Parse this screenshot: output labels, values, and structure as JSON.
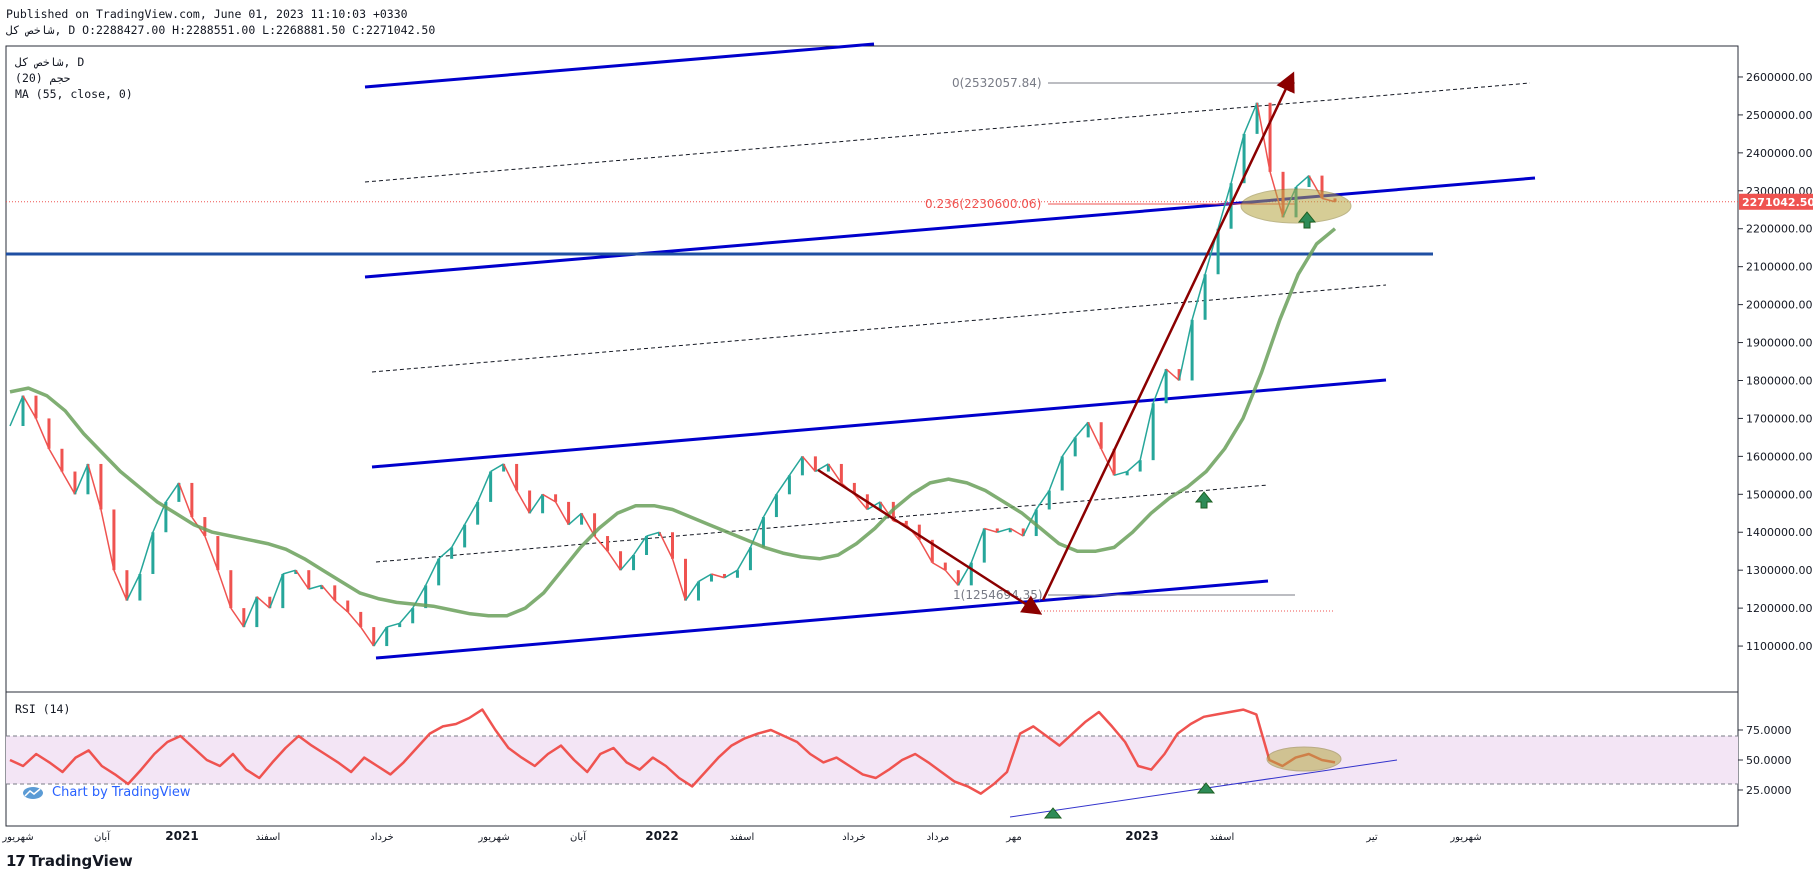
{
  "header": {
    "published": "Published on TradingView.com, June 01, 2023 11:10:03 +0330",
    "ohlc": "ﺷﺎﺧﺺ ﮐﻞ, D O:2288427.00 H:2288551.00 L:2268881.50 C:2271042.50"
  },
  "legend": {
    "symbol": "ﺷﺎﺧﺺ ﮐﻞ, D",
    "indicator1": "ﺣﺠﻢ (20)",
    "indicator2": "MA (55, close, 0)"
  },
  "rsi_legend": "RSI (14)",
  "watermark": "Chart by TradingView",
  "footer": {
    "brand": "TradingView",
    "logo_text": "17"
  },
  "colors": {
    "up": "#26a69a",
    "down": "#ef5350",
    "ma": "#6aa05a",
    "channel": "#0000cc",
    "arrow": "#8b0000",
    "price_label": "#ef5350",
    "rsi_line": "#ef5350",
    "rsi_band": "#f3e5f5",
    "highlight": "#b5a642"
  },
  "chart_data": [
    {
      "type": "line",
      "panel": "price",
      "ylim": [
        1000000,
        2650000
      ],
      "y_ticks": [
        "2600000.00",
        "2500000.00",
        "2400000.00",
        "2300000.00",
        "2200000.00",
        "2100000.00",
        "2000000.00",
        "1900000.00",
        "1800000.00",
        "1700000.00",
        "1600000.00",
        "1500000.00",
        "1400000.00",
        "1300000.00",
        "1200000.00",
        "1100000.00"
      ],
      "last_price": "2271042.50",
      "x_ticks": [
        "ﺷﻬﺮﯾﻮﺭ",
        "ﺁﺑﺎﻥ",
        "2021",
        "ﺍﺳﻔﻨﺪ",
        "ﺧﺮﺩﺍﺩ",
        "ﺷﻬﺮﯾﻮﺭ",
        "ﺁﺑﺎﻥ",
        "2022",
        "ﺍﺳﻔﻨﺪ",
        "ﺧﺮﺩﺍﺩ",
        "ﻣﺮﺩﺍﺩ",
        "ﻣﻬﺮ",
        "2023",
        "ﺍﺳﻔﻨﺪ",
        "ﺗﯿﺮ",
        "ﺷﻬﺮﯾﻮﺭ"
      ],
      "series": [
        {
          "name": "price",
          "values": [
            1680000,
            1760000,
            1700000,
            1620000,
            1560000,
            1500000,
            1580000,
            1460000,
            1300000,
            1220000,
            1290000,
            1400000,
            1480000,
            1530000,
            1440000,
            1390000,
            1300000,
            1200000,
            1150000,
            1230000,
            1200000,
            1290000,
            1300000,
            1250000,
            1260000,
            1220000,
            1190000,
            1150000,
            1100000,
            1150000,
            1160000,
            1200000,
            1260000,
            1330000,
            1360000,
            1420000,
            1480000,
            1560000,
            1580000,
            1510000,
            1450000,
            1500000,
            1480000,
            1420000,
            1450000,
            1390000,
            1350000,
            1300000,
            1340000,
            1390000,
            1400000,
            1330000,
            1220000,
            1270000,
            1290000,
            1280000,
            1300000,
            1360000,
            1440000,
            1500000,
            1550000,
            1600000,
            1560000,
            1580000,
            1530000,
            1500000,
            1460000,
            1480000,
            1430000,
            1420000,
            1380000,
            1320000,
            1300000,
            1260000,
            1320000,
            1410000,
            1400000,
            1410000,
            1390000,
            1460000,
            1510000,
            1600000,
            1650000,
            1690000,
            1620000,
            1550000,
            1560000,
            1590000,
            1740000,
            1830000,
            1800000,
            1960000,
            2080000,
            2200000,
            2320000,
            2450000,
            2532057,
            2350000,
            2230000,
            2310000,
            2340000,
            2280000,
            2271042
          ]
        },
        {
          "name": "MA (55, close, 0)",
          "values": [
            1770000,
            1780000,
            1760000,
            1720000,
            1660000,
            1610000,
            1560000,
            1520000,
            1480000,
            1450000,
            1420000,
            1400000,
            1390000,
            1380000,
            1370000,
            1355000,
            1330000,
            1300000,
            1270000,
            1240000,
            1225000,
            1215000,
            1210000,
            1205000,
            1195000,
            1185000,
            1180000,
            1180000,
            1200000,
            1240000,
            1300000,
            1360000,
            1410000,
            1450000,
            1470000,
            1470000,
            1460000,
            1440000,
            1420000,
            1400000,
            1380000,
            1360000,
            1345000,
            1335000,
            1330000,
            1340000,
            1370000,
            1410000,
            1460000,
            1500000,
            1530000,
            1540000,
            1530000,
            1510000,
            1480000,
            1450000,
            1410000,
            1370000,
            1350000,
            1350000,
            1360000,
            1400000,
            1450000,
            1490000,
            1520000,
            1560000,
            1620000,
            1700000,
            1820000,
            1960000,
            2080000,
            2160000,
            2200000
          ]
        }
      ],
      "annotations": [
        {
          "type": "fib",
          "level": "0",
          "text": "0(2532057.84)"
        },
        {
          "type": "fib",
          "level": "0.236",
          "text": "0.236(2230600.06)"
        },
        {
          "type": "fib",
          "level": "1",
          "text": "1(1254694.35)"
        }
      ]
    },
    {
      "type": "line",
      "panel": "rsi",
      "title": "RSI (14)",
      "ylim": [
        0,
        100
      ],
      "y_ticks": [
        "75.0000",
        "50.0000",
        "25.0000"
      ],
      "bands": [
        30,
        70
      ],
      "series": [
        {
          "name": "RSI (14)",
          "values": [
            50,
            45,
            55,
            48,
            40,
            52,
            58,
            45,
            38,
            30,
            42,
            55,
            65,
            70,
            60,
            50,
            45,
            55,
            42,
            35,
            48,
            60,
            70,
            62,
            55,
            48,
            40,
            52,
            45,
            38,
            48,
            60,
            72,
            78,
            80,
            85,
            92,
            75,
            60,
            52,
            45,
            55,
            62,
            50,
            40,
            55,
            60,
            48,
            42,
            52,
            45,
            35,
            28,
            40,
            52,
            62,
            68,
            72,
            75,
            70,
            65,
            55,
            48,
            52,
            45,
            38,
            35,
            42,
            50,
            55,
            48,
            40,
            32,
            28,
            22,
            30,
            40,
            72,
            78,
            70,
            62,
            72,
            82,
            90,
            78,
            65,
            45,
            42,
            55,
            72,
            80,
            86,
            88,
            90,
            92,
            88,
            50,
            45,
            52,
            55,
            50,
            48
          ]
        }
      ]
    }
  ]
}
